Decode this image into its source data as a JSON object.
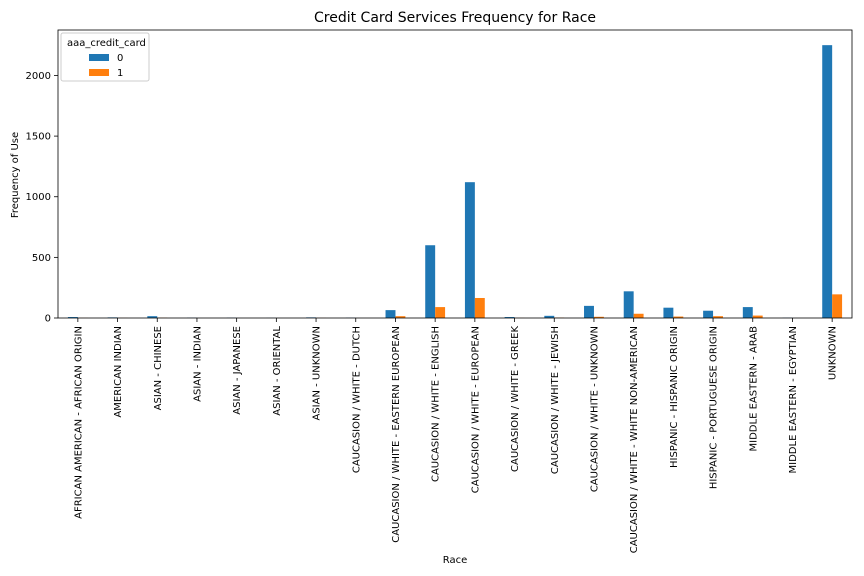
{
  "chart_data": {
    "type": "bar",
    "title": "Credit Card Services Frequency for Race",
    "xlabel": "Race",
    "ylabel": "Frequency of Use",
    "ylim": [
      0,
      2375
    ],
    "yticks": [
      0,
      500,
      1000,
      1500,
      2000
    ],
    "grid": false,
    "legend": {
      "title": "aaa_credit_card",
      "placement": "top-left"
    },
    "categories": [
      "AFRICAN AMERICAN - AFRICAN ORIGIN",
      "AMERICAN INDIAN",
      "ASIAN - CHINESE",
      "ASIAN - INDIAN",
      "ASIAN - JAPANESE",
      "ASIAN - ORIENTAL",
      "ASIAN - UNKNOWN",
      "CAUCASION / WHITE - DUTCH",
      "CAUCASION / WHITE - EASTERN EUROPEAN",
      "CAUCASION / WHITE - ENGLISH",
      "CAUCASION / WHITE - EUROPEAN",
      "CAUCASION / WHITE - GREEK",
      "CAUCASION / WHITE - JEWISH",
      "CAUCASION / WHITE - UNKNOWN",
      "CAUCASION / WHITE - WHITE NON-AMERICAN",
      "HISPANIC - HISPANIC ORIGIN",
      "HISPANIC - PORTUGUESE ORIGIN",
      "MIDDLE EASTERN - ARAB",
      "MIDDLE EASTERN - EGYPTIAN",
      "UNKNOWN"
    ],
    "series": [
      {
        "name": "0",
        "color": "#1f77b4",
        "values": [
          8,
          5,
          15,
          2,
          2,
          1,
          5,
          2,
          65,
          600,
          1120,
          8,
          18,
          100,
          220,
          85,
          60,
          90,
          2,
          2250
        ]
      },
      {
        "name": "1",
        "color": "#ff7f0e",
        "values": [
          1,
          1,
          2,
          0,
          0,
          0,
          1,
          0,
          15,
          90,
          165,
          1,
          3,
          10,
          35,
          12,
          15,
          20,
          0,
          195
        ]
      }
    ]
  }
}
